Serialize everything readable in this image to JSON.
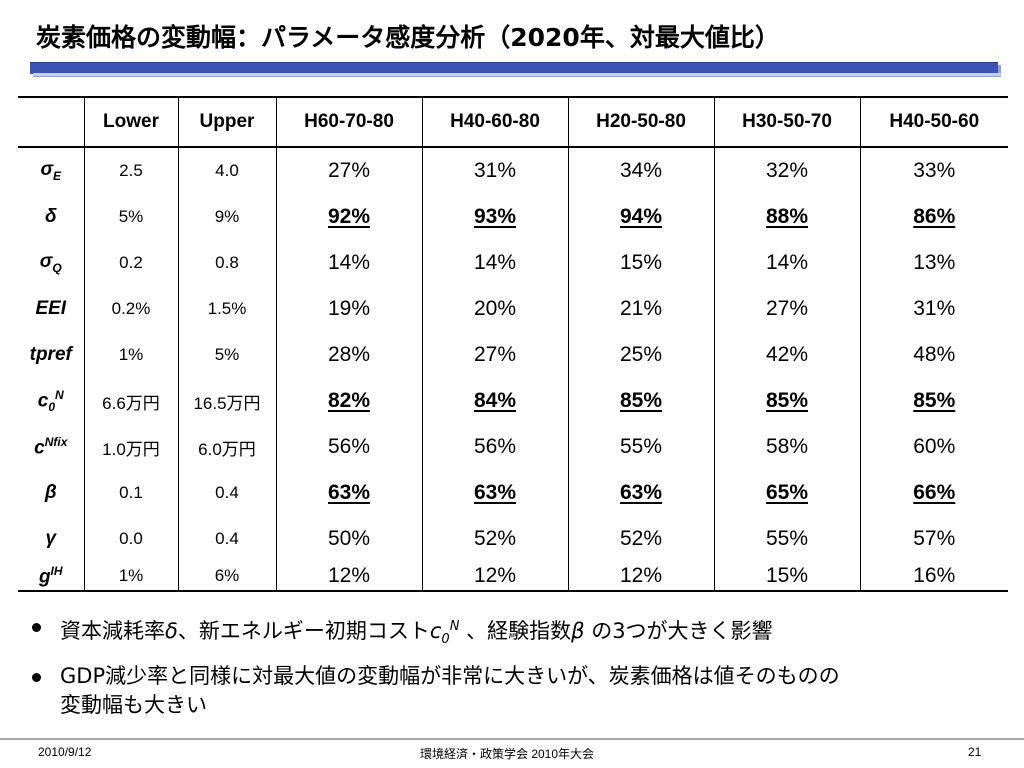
{
  "title": "炭素価格の変動幅：パラメータ感度分析（2020年、対最大値比）",
  "table": {
    "headers": [
      "",
      "Lower",
      "Upper",
      "H60-70-80",
      "H40-60-80",
      "H20-50-80",
      "H30-50-70",
      "H40-50-60"
    ],
    "rows": [
      {
        "sym": "σ",
        "sub": "E",
        "sup": "",
        "lower": "2.5",
        "upper": "4.0",
        "highlight": false,
        "values": [
          "27%",
          "31%",
          "34%",
          "32%",
          "33%"
        ]
      },
      {
        "sym": "δ",
        "sub": "",
        "sup": "",
        "lower": "5%",
        "upper": "9%",
        "highlight": true,
        "values": [
          "92%",
          "93%",
          "94%",
          "88%",
          "86%"
        ]
      },
      {
        "sym": "σ",
        "sub": "Q",
        "sup": "",
        "lower": "0.2",
        "upper": "0.8",
        "highlight": false,
        "values": [
          "14%",
          "14%",
          "15%",
          "14%",
          "13%"
        ]
      },
      {
        "sym": "EEI",
        "sub": "",
        "sup": "",
        "lower": "0.2%",
        "upper": "1.5%",
        "highlight": false,
        "values": [
          "19%",
          "20%",
          "21%",
          "27%",
          "31%"
        ]
      },
      {
        "sym": "tpref",
        "sub": "",
        "sup": "",
        "lower": "1%",
        "upper": "5%",
        "highlight": false,
        "values": [
          "28%",
          "27%",
          "25%",
          "42%",
          "48%"
        ]
      },
      {
        "sym": "c",
        "sub": "0",
        "sup": "N",
        "lower": "6.6万円",
        "upper": "16.5万円",
        "highlight": true,
        "values": [
          "82%",
          "84%",
          "85%",
          "85%",
          "85%"
        ]
      },
      {
        "sym": "c",
        "sub": "",
        "sup": "Nfix",
        "lower": "1.0万円",
        "upper": "6.0万円",
        "highlight": false,
        "values": [
          "56%",
          "56%",
          "55%",
          "58%",
          "60%"
        ]
      },
      {
        "sym": "β",
        "sub": "",
        "sup": "",
        "lower": "0.1",
        "upper": "0.4",
        "highlight": true,
        "values": [
          "63%",
          "63%",
          "63%",
          "65%",
          "66%"
        ]
      },
      {
        "sym": "γ",
        "sub": "",
        "sup": "",
        "lower": "0.0",
        "upper": "0.4",
        "highlight": false,
        "values": [
          "50%",
          "52%",
          "52%",
          "55%",
          "57%"
        ]
      },
      {
        "sym": "g",
        "sub": "",
        "sup": "IH",
        "lower": "1%",
        "upper": "6%",
        "highlight": false,
        "values": [
          "12%",
          "12%",
          "12%",
          "15%",
          "16%"
        ]
      }
    ]
  },
  "bullets": {
    "b1": {
      "part1": "資本減耗率",
      "delta": "δ",
      "part2": "、新エネルギー初期コスト",
      "c": "c",
      "c_sub": "0",
      "c_sup": "N",
      "part3": " 、経験指数",
      "beta": "β",
      "part4": " の3つが大きく影響"
    },
    "b2": {
      "line1": "GDP減少率と同様に対最大値の変動幅が非常に大きいが、炭素価格は値そのものの",
      "line2": "変動幅も大きい"
    }
  },
  "footer": {
    "date": "2010/9/12",
    "event": "環境経済・政策学会 2010年大会",
    "page": "21"
  },
  "colors": {
    "title_bar": "#3b54b3",
    "title_bar_shadow": "#8fa0d6",
    "footer_line": "#a6a6a6"
  }
}
